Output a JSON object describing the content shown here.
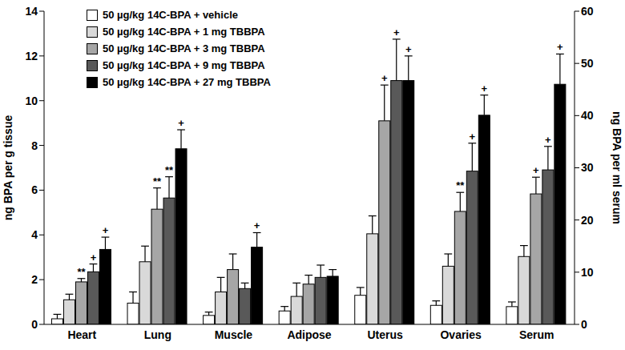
{
  "chart_data": {
    "type": "bar",
    "categories": [
      "Heart",
      "Lung",
      "Muscle",
      "Adipose",
      "Uterus",
      "Ovaries",
      "Serum"
    ],
    "y_label": "ng BPA per g tissue",
    "y2_label": "ng BPA per ml serum",
    "ylim": [
      0,
      14
    ],
    "yticks": [
      0,
      2,
      4,
      6,
      8,
      10,
      12,
      14
    ],
    "y2lim": [
      0,
      60
    ],
    "y2ticks": [
      0,
      10,
      20,
      30,
      40,
      50,
      60
    ],
    "legend": "upper left",
    "grid": false,
    "series": [
      {
        "name": "50 µg/kg 14C-BPA + vehicle",
        "color": "#ffffff",
        "values": [
          0.25,
          0.95,
          0.4,
          0.6,
          1.3,
          0.85,
          null
        ],
        "errors": [
          0.2,
          0.5,
          0.15,
          0.2,
          0.35,
          0.2,
          null
        ],
        "significance": [
          null,
          null,
          null,
          null,
          null,
          null,
          null
        ]
      },
      {
        "name": "50 µg/kg 14C-BPA + 1 mg TBBPA",
        "color": "#d9d9d9",
        "values": [
          1.1,
          2.8,
          1.45,
          1.25,
          4.05,
          2.6,
          null
        ],
        "errors": [
          0.25,
          0.7,
          0.65,
          0.6,
          0.8,
          0.55,
          null
        ],
        "significance": [
          null,
          null,
          null,
          null,
          null,
          null,
          null
        ]
      },
      {
        "name": "50 µg/kg 14C-BPA + 3 mg TBBPA",
        "color": "#a6a6a6",
        "values": [
          1.9,
          5.15,
          2.45,
          1.8,
          9.1,
          5.05,
          null
        ],
        "errors": [
          0.15,
          0.95,
          0.7,
          0.4,
          1.6,
          0.85,
          null
        ],
        "significance": [
          "**",
          "**",
          null,
          null,
          "+",
          "**",
          null
        ]
      },
      {
        "name": "50 µg/kg 14C-BPA + 9 mg TBBPA",
        "color": "#595959",
        "values": [
          2.35,
          5.65,
          1.6,
          2.1,
          10.9,
          6.85,
          null
        ],
        "errors": [
          0.35,
          0.95,
          0.25,
          0.55,
          1.85,
          1.25,
          null
        ],
        "significance": [
          "+",
          "**",
          null,
          null,
          "+",
          "+",
          null
        ]
      },
      {
        "name": "50 µg/kg 14C-BPA + 27 mg TBBPA",
        "color": "#000000",
        "values": [
          3.35,
          7.85,
          3.45,
          2.15,
          10.9,
          9.35,
          null
        ],
        "errors": [
          0.55,
          0.85,
          0.65,
          0.3,
          1.1,
          0.9,
          null
        ],
        "significance": [
          "+",
          "+",
          "+",
          null,
          "+",
          "+",
          null
        ]
      },
      {
        "name": "50 µg/kg 14C-BPA + vehicle",
        "color": "#ffffff",
        "axis": "y2",
        "values": [
          null,
          null,
          null,
          null,
          null,
          null,
          3.4
        ],
        "errors": [
          null,
          null,
          null,
          null,
          null,
          null,
          0.9
        ],
        "significance": [
          null,
          null,
          null,
          null,
          null,
          null,
          null
        ]
      },
      {
        "name": "50 µg/kg 14C-BPA + 1 mg TBBPA",
        "color": "#d9d9d9",
        "axis": "y2",
        "values": [
          null,
          null,
          null,
          null,
          null,
          null,
          13
        ],
        "errors": [
          null,
          null,
          null,
          null,
          null,
          null,
          2.1
        ],
        "significance": [
          null,
          null,
          null,
          null,
          null,
          null,
          null
        ]
      },
      {
        "name": "50 µg/kg 14C-BPA + 3 mg TBBPA",
        "color": "#a6a6a6",
        "axis": "y2",
        "values": [
          null,
          null,
          null,
          null,
          null,
          null,
          25
        ],
        "errors": [
          null,
          null,
          null,
          null,
          null,
          null,
          3.2
        ],
        "significance": [
          null,
          null,
          null,
          null,
          null,
          null,
          "+"
        ]
      },
      {
        "name": "50 µg/kg 14C-BPA + 9 mg TBBPA",
        "color": "#595959",
        "axis": "y2",
        "values": [
          null,
          null,
          null,
          null,
          null,
          null,
          29.6
        ],
        "errors": [
          null,
          null,
          null,
          null,
          null,
          null,
          4.5
        ],
        "significance": [
          null,
          null,
          null,
          null,
          null,
          null,
          "+"
        ]
      },
      {
        "name": "50 µg/kg 14C-BPA + 27 mg TBBPA",
        "color": "#000000",
        "axis": "y2",
        "values": [
          null,
          null,
          null,
          null,
          null,
          null,
          46
        ],
        "errors": [
          null,
          null,
          null,
          null,
          null,
          null,
          5.8
        ],
        "significance": [
          null,
          null,
          null,
          null,
          null,
          null,
          "+"
        ]
      }
    ]
  }
}
